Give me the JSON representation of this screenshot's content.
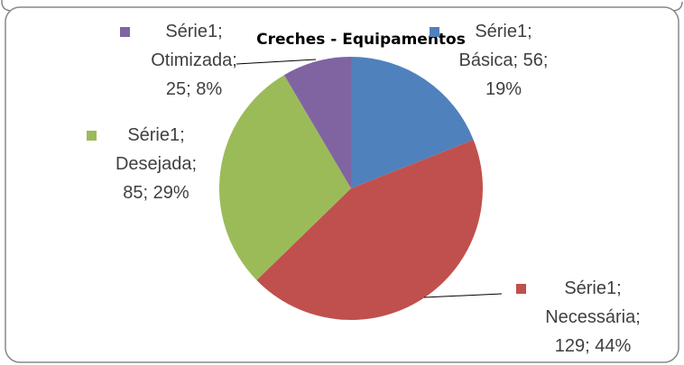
{
  "chart_data": {
    "type": "pie",
    "title": "Creches - Equipamentos",
    "categories": [
      "Básica",
      "Necessária",
      "Desejada",
      "Otimizada"
    ],
    "values": [
      56,
      129,
      85,
      25
    ],
    "value_labels": [
      "Série1; Básica; 56; 19%",
      "Série1; Necessária; 129; 44%",
      "Série1; Desejada; 85; 29%",
      "Série1; Otimizada; 25; 8%"
    ],
    "colors": [
      "#4f81bd",
      "#c0504d",
      "#9bbb59",
      "#8064a2"
    ]
  }
}
